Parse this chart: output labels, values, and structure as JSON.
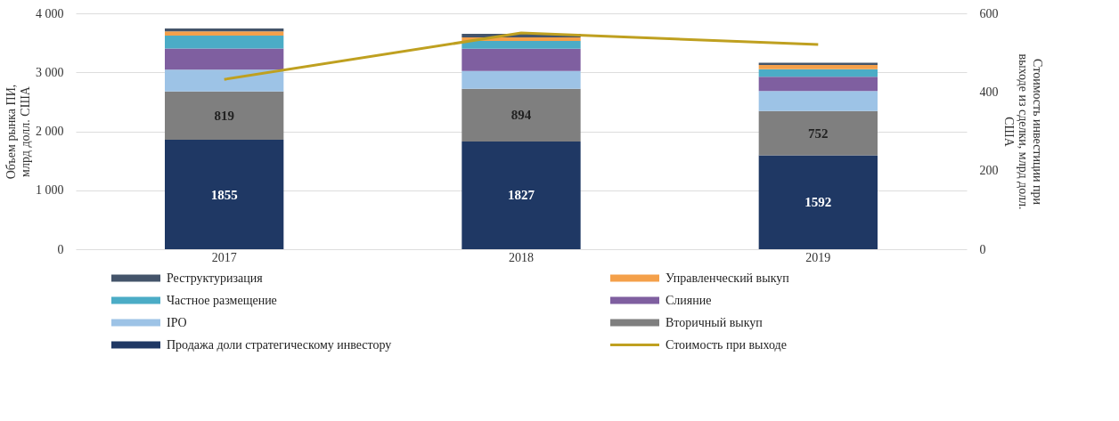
{
  "chart_data": {
    "type": "bar",
    "stacked": true,
    "categories": [
      "2017",
      "2018",
      "2019"
    ],
    "ylabel": "Объем рынка ПИ,\nмлрд долл. США",
    "y2label": "Стоимость инвестиции при\nвыходе из сделки, млрд долл.\nСША",
    "ylim": [
      0,
      4000
    ],
    "yticks": [
      {
        "value": 0,
        "label": "0"
      },
      {
        "value": 1000,
        "label": "1 000"
      },
      {
        "value": 2000,
        "label": "2 000"
      },
      {
        "value": 3000,
        "label": "3 000"
      },
      {
        "value": 4000,
        "label": "4 000"
      }
    ],
    "y2lim": [
      0,
      600
    ],
    "y2ticks": [
      0,
      200,
      400,
      600
    ],
    "grid": "y",
    "legend": "bottom",
    "series": [
      {
        "name": "Продажа доли стратегическому инвестору",
        "color": "#1f3864",
        "values": [
          1855,
          1827,
          1592
        ],
        "value_labels": [
          "1855",
          "1827",
          "1592"
        ]
      },
      {
        "name": "Вторичный выкуп",
        "color": "#7f7f7f",
        "values": [
          819,
          894,
          752
        ],
        "value_labels": [
          "819",
          "894",
          "752"
        ]
      },
      {
        "name": "IPO",
        "color": "#9dc3e6",
        "values": [
          370,
          300,
          340
        ]
      },
      {
        "name": "Слияние",
        "color": "#7f5fa0",
        "values": [
          360,
          380,
          240
        ]
      },
      {
        "name": "Частное размещение",
        "color": "#4bacc6",
        "values": [
          220,
          130,
          130
        ]
      },
      {
        "name": "Управленческий выкуп",
        "color": "#f4a04a",
        "values": [
          70,
          60,
          70
        ]
      },
      {
        "name": "Реструктуризация",
        "color": "#44546a",
        "values": [
          50,
          60,
          40
        ]
      },
      {
        "name": "Стоимость  при выходе",
        "type": "line",
        "axis": "y2",
        "color": "#bfa020",
        "values": [
          432,
          550,
          521
        ]
      }
    ]
  }
}
